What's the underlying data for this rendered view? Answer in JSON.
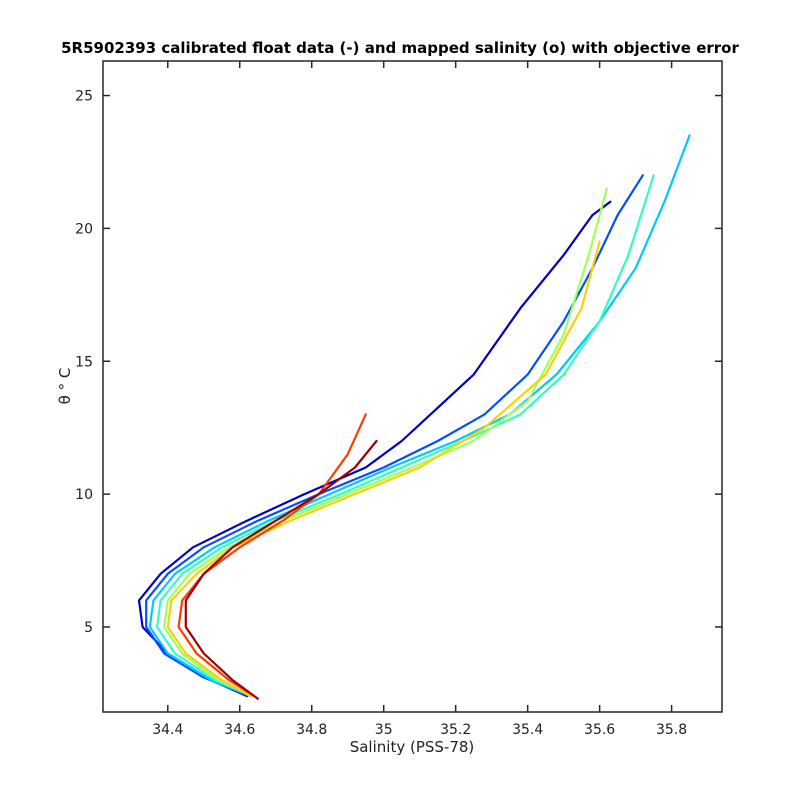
{
  "chart_data": {
    "type": "line",
    "title": "5R5902393 calibrated float data (-) and mapped salinity (o) with objective error",
    "xlabel": "Salinity (PSS-78)",
    "ylabel": "θ ° C",
    "xlim": [
      34.22,
      35.94
    ],
    "ylim": [
      1.8,
      26.3
    ],
    "grid": false,
    "legend": "none",
    "x_ticks": [
      34.4,
      34.6,
      34.8,
      35,
      35.2,
      35.4,
      35.6,
      35.8
    ],
    "y_ticks": [
      5,
      10,
      15,
      20,
      25
    ],
    "x_tick_labels": [
      "34.4",
      "34.6",
      "34.8",
      "35",
      "35.2",
      "35.4",
      "35.6",
      "35.8"
    ],
    "y_tick_labels": [
      "5",
      "10",
      "15",
      "20",
      "25"
    ],
    "colormap": "jet",
    "colormap_stops": [
      "#00008f",
      "#0000ff",
      "#00ffff",
      "#ffff00",
      "#ff0000",
      "#800000"
    ],
    "series": [
      {
        "color": "#0000c0",
        "x": [
          34.62,
          34.52,
          34.4,
          34.33,
          34.32,
          34.38,
          34.47,
          34.62,
          34.78,
          34.95,
          35.05,
          35.13,
          35.25,
          35.38,
          35.5,
          35.58,
          35.63
        ],
        "y": [
          2.4,
          3.0,
          4.0,
          5.0,
          6.0,
          7.0,
          8.0,
          9.0,
          10.0,
          11.0,
          12.0,
          13.0,
          14.5,
          17.0,
          19.0,
          20.5,
          21.0
        ]
      },
      {
        "color": "#0050ff",
        "x": [
          34.61,
          34.5,
          34.39,
          34.34,
          34.34,
          34.4,
          34.5,
          34.65,
          34.82,
          35.0,
          35.15,
          35.28,
          35.4,
          35.5,
          35.58,
          35.65,
          35.72
        ],
        "y": [
          2.5,
          3.1,
          4.0,
          5.0,
          6.0,
          7.0,
          8.0,
          9.0,
          10.0,
          11.0,
          12.0,
          13.0,
          14.5,
          16.5,
          18.5,
          20.5,
          22.0
        ]
      },
      {
        "color": "#00c8ff",
        "x": [
          34.63,
          34.52,
          34.4,
          34.35,
          34.36,
          34.42,
          34.53,
          34.68,
          34.85,
          35.02,
          35.2,
          35.35,
          35.48,
          35.6,
          35.7,
          35.78,
          35.85
        ],
        "y": [
          2.4,
          3.0,
          4.0,
          5.0,
          6.0,
          7.0,
          8.0,
          9.0,
          10.0,
          11.0,
          12.0,
          13.0,
          14.5,
          16.5,
          18.5,
          21.0,
          23.5
        ]
      },
      {
        "color": "#30ffc0",
        "x": [
          34.62,
          34.53,
          34.42,
          34.37,
          34.38,
          34.44,
          34.55,
          34.7,
          34.88,
          35.05,
          35.22,
          35.38,
          35.5,
          35.6,
          35.68,
          35.75
        ],
        "y": [
          2.5,
          3.0,
          4.0,
          5.0,
          6.0,
          7.0,
          8.0,
          9.0,
          10.0,
          11.0,
          12.0,
          13.0,
          14.5,
          16.5,
          19.0,
          22.0
        ]
      },
      {
        "color": "#a0ff60",
        "x": [
          34.62,
          34.54,
          34.44,
          34.39,
          34.4,
          34.46,
          34.57,
          34.72,
          34.9,
          35.08,
          35.25,
          35.4,
          35.5,
          35.57,
          35.62
        ],
        "y": [
          2.5,
          3.0,
          4.0,
          5.0,
          6.0,
          7.0,
          8.0,
          9.0,
          10.0,
          11.0,
          12.0,
          13.5,
          16.0,
          19.0,
          21.5
        ]
      },
      {
        "color": "#ffd000",
        "x": [
          34.63,
          34.55,
          34.45,
          34.4,
          34.41,
          34.48,
          34.58,
          34.74,
          34.92,
          35.1,
          35.28,
          35.45,
          35.55,
          35.6
        ],
        "y": [
          2.4,
          3.0,
          4.0,
          5.0,
          6.0,
          7.0,
          8.0,
          9.0,
          10.0,
          11.0,
          12.5,
          14.5,
          17.0,
          19.5
        ]
      },
      {
        "color": "#ff3c00",
        "x": [
          34.64,
          34.57,
          34.48,
          34.43,
          34.44,
          34.5,
          34.6,
          34.72,
          34.82,
          34.9,
          34.95
        ],
        "y": [
          2.4,
          3.0,
          4.0,
          5.0,
          6.0,
          7.0,
          8.0,
          9.0,
          10.0,
          11.5,
          13.0
        ]
      },
      {
        "color": "#a00000",
        "x": [
          34.65,
          34.58,
          34.5,
          34.45,
          34.45,
          34.5,
          34.58,
          34.7,
          34.82,
          34.92,
          34.98
        ],
        "y": [
          2.3,
          3.0,
          4.0,
          5.0,
          6.0,
          7.0,
          8.0,
          9.0,
          10.0,
          11.0,
          12.0
        ]
      }
    ]
  }
}
